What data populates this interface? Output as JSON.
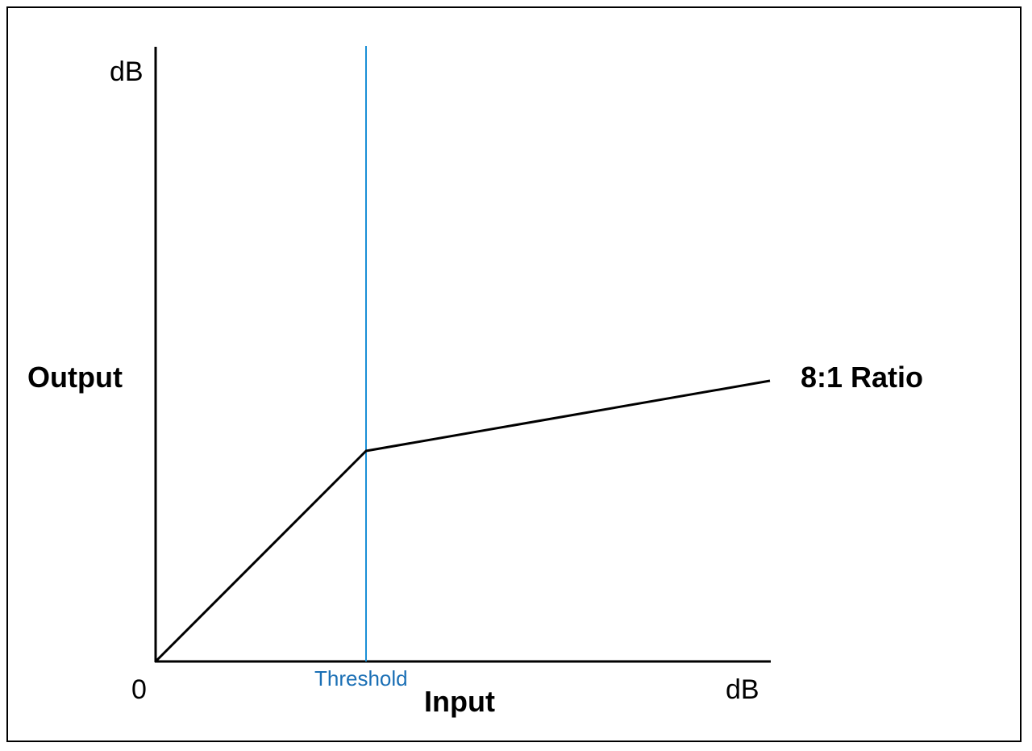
{
  "diagram": {
    "y_axis": {
      "label": "Output",
      "unit": "dB"
    },
    "x_axis": {
      "label": "Input",
      "unit": "dB",
      "origin": "0"
    },
    "threshold": {
      "label": "Threshold",
      "color": "#1a8fd6"
    },
    "curve": {
      "label": "8:1 Ratio",
      "color": "#000000"
    }
  }
}
